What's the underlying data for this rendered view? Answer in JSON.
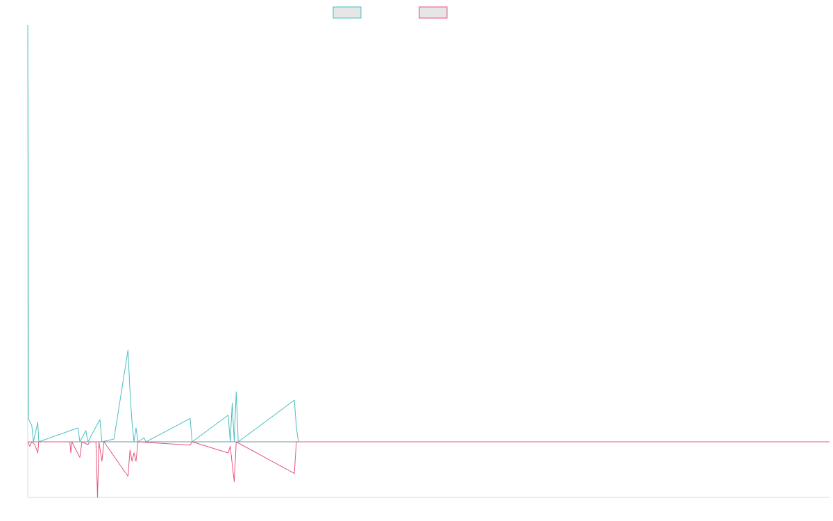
{
  "chart_data": {
    "type": "line",
    "title": "",
    "xlabel": "",
    "ylabel": "",
    "legend": {
      "placement": "top-center",
      "entries": [
        {
          "series_index": 0,
          "box_fill": "#e6e6e6",
          "border": "#4bbfbf"
        },
        {
          "series_index": 1,
          "box_fill": "#e6e6e6",
          "border": "#e8537a"
        }
      ]
    },
    "grid": false,
    "xlim": [
      0,
      400
    ],
    "ylim": [
      -1,
      7.5
    ],
    "series": [
      {
        "color": "#4bbfbf",
        "points": [
          [
            0,
            7.5
          ],
          [
            0.5,
            0.4
          ],
          [
            2,
            0.3
          ],
          [
            2.8,
            0
          ],
          [
            5,
            0.35
          ],
          [
            5.5,
            0
          ],
          [
            25,
            0.25
          ],
          [
            26,
            0
          ],
          [
            29,
            0.2
          ],
          [
            30,
            0
          ],
          [
            36,
            0.4
          ],
          [
            37,
            0
          ],
          [
            43,
            0.05
          ],
          [
            50,
            1.65
          ],
          [
            51,
            0.9
          ],
          [
            52,
            0.35
          ],
          [
            53,
            0
          ],
          [
            54,
            0.25
          ],
          [
            55,
            0
          ],
          [
            58,
            0.07
          ],
          [
            59,
            0
          ],
          [
            81,
            0.42
          ],
          [
            82,
            0
          ],
          [
            100,
            0.48
          ],
          [
            101,
            0
          ],
          [
            102,
            0.7
          ],
          [
            103,
            0
          ],
          [
            104,
            0.9
          ],
          [
            105,
            0
          ],
          [
            133,
            0.75
          ],
          [
            134,
            0.27
          ],
          [
            135,
            0
          ]
        ]
      },
      {
        "color": "#e8537a",
        "points": [
          [
            0,
            0
          ],
          [
            1,
            -0.08
          ],
          [
            2,
            0
          ],
          [
            3.5,
            -0.05
          ],
          [
            5,
            -0.2
          ],
          [
            5.5,
            0
          ],
          [
            21,
            0
          ],
          [
            21.5,
            -0.2
          ],
          [
            22,
            0
          ],
          [
            26,
            -0.28
          ],
          [
            27,
            0
          ],
          [
            30,
            -0.05
          ],
          [
            31,
            0
          ],
          [
            34,
            0
          ],
          [
            34.8,
            -1.0
          ],
          [
            35.5,
            0
          ],
          [
            37,
            -0.35
          ],
          [
            38,
            0
          ],
          [
            50,
            -0.62
          ],
          [
            51,
            -0.15
          ],
          [
            52,
            -0.35
          ],
          [
            53,
            -0.2
          ],
          [
            54,
            -0.35
          ],
          [
            55,
            0
          ],
          [
            81,
            -0.06
          ],
          [
            82,
            0
          ],
          [
            100,
            -0.2
          ],
          [
            101,
            -0.08
          ],
          [
            102,
            -0.4
          ],
          [
            103,
            -0.72
          ],
          [
            104,
            0
          ],
          [
            133,
            -0.57
          ],
          [
            134,
            0
          ]
        ]
      }
    ]
  }
}
